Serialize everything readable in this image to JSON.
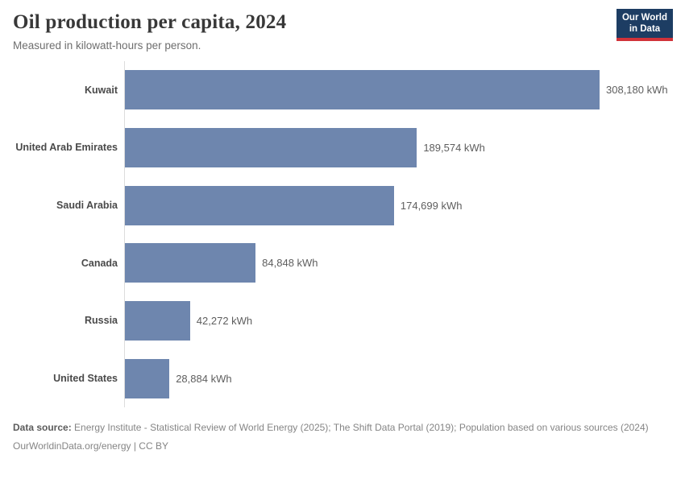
{
  "header": {
    "title": "Oil production per capita, 2024",
    "subtitle": "Measured in kilowatt-hours per person.",
    "logo": {
      "line1": "Our World",
      "line2": "in Data"
    }
  },
  "chart_data": {
    "type": "bar",
    "orientation": "horizontal",
    "title": "Oil production per capita, 2024",
    "unit": "kWh",
    "categories": [
      "Kuwait",
      "United Arab Emirates",
      "Saudi Arabia",
      "Canada",
      "Russia",
      "United States"
    ],
    "values": [
      308180,
      189574,
      174699,
      84848,
      42272,
      28884
    ],
    "value_labels": [
      "308,180 kWh",
      "189,574 kWh",
      "174,699 kWh",
      "84,848 kWh",
      "42,272 kWh",
      "28,884 kWh"
    ],
    "xlim": [
      0,
      308180
    ],
    "grid": false,
    "legend": "none",
    "bar_color": "#6e86ae"
  },
  "footer": {
    "datasource_label": "Data source:",
    "datasource_text": "Energy Institute - Statistical Review of World Energy (2025); The Shift Data Portal (2019); Population based on various sources (2024)",
    "link_text": "OurWorldinData.org/energy | CC BY"
  },
  "colors": {
    "bar": "#6e86ae",
    "axis": "#dcdcdc",
    "logo_background": "#1d3d63",
    "logo_accent": "#d13239"
  }
}
